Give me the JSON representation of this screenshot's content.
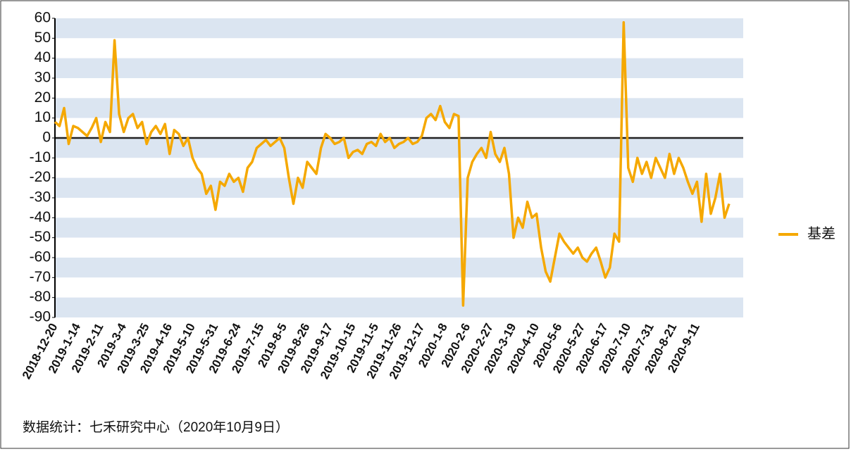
{
  "chart_data": {
    "type": "line",
    "categories": [
      "2018-12-20",
      null,
      null,
      null,
      null,
      "2019-1-14",
      null,
      null,
      null,
      null,
      "2019-2-11",
      null,
      null,
      null,
      null,
      "2019-3-4",
      null,
      null,
      null,
      null,
      "2019-3-25",
      null,
      null,
      null,
      null,
      "2019-4-16",
      null,
      null,
      null,
      null,
      "2019-5-10",
      null,
      null,
      null,
      null,
      "2019-5-31",
      null,
      null,
      null,
      null,
      "2019-6-24",
      null,
      null,
      null,
      null,
      "2019-7-15",
      null,
      null,
      null,
      null,
      "2019-8-5",
      null,
      null,
      null,
      null,
      "2019-8-26",
      null,
      null,
      null,
      null,
      "2019-9-17",
      null,
      null,
      null,
      null,
      "2019-10-15",
      null,
      null,
      null,
      null,
      "2019-11-5",
      null,
      null,
      null,
      null,
      "2019-11-26",
      null,
      null,
      null,
      null,
      "2019-12-17",
      null,
      null,
      null,
      null,
      "2020-1-8",
      null,
      null,
      null,
      null,
      "2020-2-6",
      null,
      null,
      null,
      null,
      "2020-2-27",
      null,
      null,
      null,
      null,
      "2020-3-19",
      null,
      null,
      null,
      null,
      "2020-4-10",
      null,
      null,
      null,
      null,
      "2020-5-6",
      null,
      null,
      null,
      null,
      "2020-5-27",
      null,
      null,
      null,
      null,
      "2020-6-17",
      null,
      null,
      null,
      null,
      "2020-7-10",
      null,
      null,
      null,
      null,
      "2020-7-31",
      null,
      null,
      null,
      null,
      "2020-8-21",
      null,
      null,
      null,
      null,
      "2020-9-11",
      null,
      null,
      null,
      null,
      null,
      null,
      null
    ],
    "series": [
      {
        "name": "基差",
        "color": "#f5a800",
        "values": [
          8,
          6,
          15,
          -3,
          6,
          5,
          3,
          1,
          5,
          10,
          -2,
          8,
          3,
          49,
          12,
          3,
          10,
          12,
          5,
          8,
          -3,
          3,
          6,
          2,
          7,
          -8,
          4,
          2,
          -4,
          0,
          -10,
          -15,
          -18,
          -28,
          -24,
          -36,
          -22,
          -24,
          -18,
          -22,
          -20,
          -27,
          -15,
          -12,
          -5,
          -3,
          -1,
          -4,
          -2,
          0,
          -5,
          -20,
          -33,
          -20,
          -25,
          -12,
          -15,
          -18,
          -5,
          2,
          0,
          -3,
          -2,
          0,
          -10,
          -7,
          -6,
          -8,
          -3,
          -2,
          -4,
          2,
          -2,
          0,
          -5,
          -3,
          -2,
          0,
          -3,
          -2,
          1,
          10,
          12,
          9,
          16,
          8,
          5,
          12,
          11,
          -84,
          -20,
          -12,
          -8,
          -5,
          -10,
          3,
          -8,
          -12,
          -5,
          -18,
          -50,
          -40,
          -45,
          -32,
          -40,
          -38,
          -55,
          -67,
          -72,
          -60,
          -48,
          -52,
          -55,
          -58,
          -55,
          -60,
          -62,
          -58,
          -55,
          -62,
          -70,
          -65,
          -48,
          -52,
          58,
          -15,
          -22,
          -10,
          -18,
          -12,
          -20,
          -10,
          -15,
          -20,
          -8,
          -18,
          -10,
          -15,
          -22,
          -28,
          -22,
          -42,
          -18,
          -38,
          -30,
          -18,
          -40,
          -33
        ]
      }
    ],
    "ylim": [
      -90,
      60
    ],
    "yticks": [
      -90,
      -80,
      -70,
      -60,
      -50,
      -40,
      -30,
      -20,
      -10,
      0,
      10,
      20,
      30,
      40,
      50,
      60
    ],
    "band_colors": [
      "#dbe5f1",
      "#ffffff"
    ],
    "legend": "right",
    "source": "数据统计：七禾研究中心（2020年10月9日）"
  }
}
